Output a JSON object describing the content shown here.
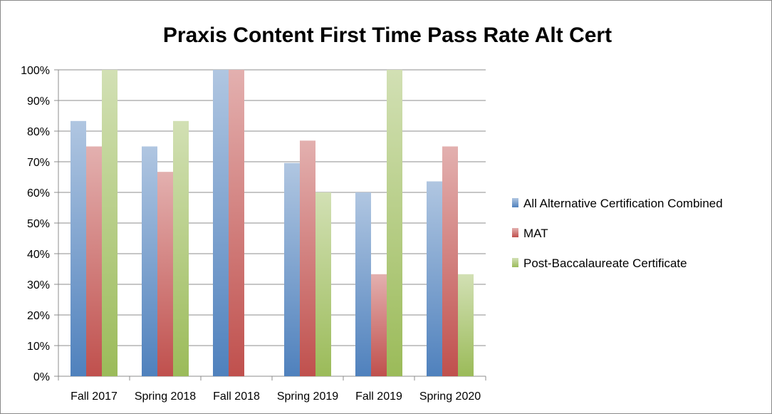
{
  "chart_data": {
    "type": "bar",
    "title": "Praxis Content First Time Pass Rate Alt Cert",
    "xlabel": "",
    "ylabel": "",
    "categories": [
      "Fall 2017",
      "Spring 2018",
      "Fall 2018",
      "Spring 2019",
      "Fall 2019",
      "Spring 2020"
    ],
    "y_ticks": [
      "0%",
      "10%",
      "20%",
      "30%",
      "40%",
      "50%",
      "60%",
      "70%",
      "80%",
      "90%",
      "100%"
    ],
    "ylim": [
      0,
      100
    ],
    "y_unit": "%",
    "grid": true,
    "legend_position": "right",
    "series": [
      {
        "name": "All Alternative Certification Combined",
        "color": "#4f81bd",
        "values": [
          83.3,
          75,
          100,
          69.6,
          60,
          63.6
        ]
      },
      {
        "name": "MAT",
        "color": "#c0504d",
        "values": [
          75,
          66.7,
          100,
          76.9,
          33.3,
          75
        ]
      },
      {
        "name": "Post-Baccalaureate Certificate",
        "color": "#9bbb59",
        "values": [
          100,
          83.3,
          null,
          60,
          100,
          33.3
        ]
      }
    ]
  }
}
